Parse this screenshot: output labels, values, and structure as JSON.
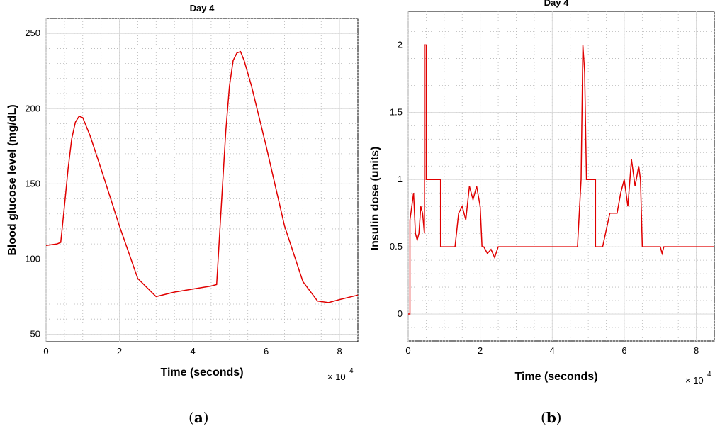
{
  "chart_data": [
    {
      "type": "line",
      "title": "Day 4",
      "xlabel": "Time (seconds)",
      "ylabel": "Blood glucose level (mg/dL)",
      "x_multiplier": "× 10 4",
      "xlim": [
        0,
        8.5
      ],
      "ylim": [
        45,
        260
      ],
      "xticks": [
        0,
        2,
        4,
        6,
        8
      ],
      "yticks": [
        50,
        100,
        150,
        200,
        250
      ],
      "grid": true,
      "series_color": "#e00000",
      "x": [
        0,
        0.3,
        0.4,
        0.5,
        0.6,
        0.7,
        0.8,
        0.9,
        1.0,
        1.2,
        1.5,
        2.0,
        2.5,
        3.0,
        3.5,
        4.0,
        4.5,
        4.65,
        4.8,
        4.9,
        5.0,
        5.1,
        5.2,
        5.3,
        5.4,
        5.6,
        6.0,
        6.5,
        7.0,
        7.4,
        7.7,
        8.0,
        8.5
      ],
      "y": [
        109,
        110,
        111,
        135,
        160,
        180,
        191,
        195,
        194,
        182,
        160,
        122,
        87,
        75,
        78,
        80,
        82,
        83,
        145,
        185,
        215,
        232,
        237,
        238,
        232,
        215,
        175,
        122,
        85,
        72,
        71,
        73,
        76
      ],
      "caption": "(a)"
    },
    {
      "type": "line",
      "title": "Day 4",
      "xlabel": "Time (seconds)",
      "ylabel": "Insulin dose (units)",
      "x_multiplier": "× 10 4",
      "xlim": [
        0,
        8.5
      ],
      "ylim": [
        -0.2,
        2.25
      ],
      "xticks": [
        0,
        2,
        4,
        6,
        8
      ],
      "yticks": [
        0,
        0.5,
        1,
        1.5,
        2
      ],
      "yticklabels": [
        "0",
        "0.5",
        "1",
        "1.5",
        "2"
      ],
      "grid": true,
      "series_color": "#e00000",
      "x": [
        0,
        0.05,
        0.05,
        0.1,
        0.15,
        0.2,
        0.25,
        0.3,
        0.35,
        0.4,
        0.45,
        0.45,
        0.5,
        0.5,
        0.9,
        0.9,
        1.3,
        1.4,
        1.5,
        1.6,
        1.7,
        1.8,
        1.9,
        2.0,
        2.05,
        2.1,
        2.2,
        2.3,
        2.4,
        2.5,
        2.6,
        4.7,
        4.8,
        4.85,
        4.9,
        4.95,
        5.0,
        5.2,
        5.2,
        5.4,
        5.6,
        5.8,
        5.9,
        6.0,
        6.1,
        6.2,
        6.3,
        6.4,
        6.45,
        6.5,
        7.0,
        7.05,
        7.1,
        8.5
      ],
      "y": [
        0,
        0,
        0.7,
        0.8,
        0.9,
        0.6,
        0.55,
        0.6,
        0.8,
        0.75,
        0.6,
        2.0,
        2.0,
        1.0,
        1.0,
        0.5,
        0.5,
        0.75,
        0.8,
        0.7,
        0.95,
        0.85,
        0.95,
        0.8,
        0.5,
        0.5,
        0.45,
        0.48,
        0.42,
        0.5,
        0.5,
        0.5,
        1.0,
        2.0,
        1.8,
        1.0,
        1.0,
        1.0,
        0.5,
        0.5,
        0.75,
        0.75,
        0.9,
        1.0,
        0.8,
        1.15,
        0.95,
        1.1,
        1.0,
        0.5,
        0.5,
        0.45,
        0.5,
        0.5
      ],
      "caption": "(b)"
    }
  ]
}
